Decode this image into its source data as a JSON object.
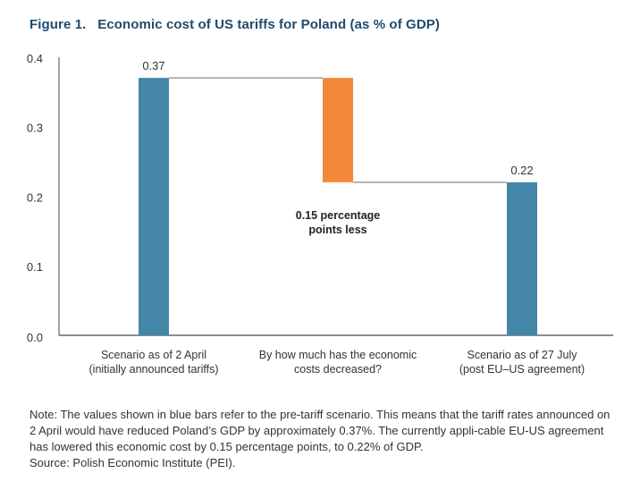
{
  "figure": {
    "title": "Figure 1.   Economic cost of US tariffs for Poland (as % of GDP)"
  },
  "chart_data": {
    "type": "bar",
    "subtype": "waterfall",
    "title": "Economic cost of US tariffs for Poland (as % of GDP)",
    "xlabel": "",
    "ylabel": "",
    "ylim": [
      0,
      0.4
    ],
    "yticks": [
      "0.0",
      "0.1",
      "0.2",
      "0.3",
      "0.4"
    ],
    "grid": false,
    "categories": [
      [
        "Scenario as of 2 April",
        "(initially announced tariffs)"
      ],
      [
        "By how much has the economic",
        "costs decreased?"
      ],
      [
        "Scenario as of 27 July",
        "(post EU–US agreement)"
      ]
    ],
    "bars": [
      {
        "label": "Scenario as of 2 April",
        "base": 0,
        "value": 0.37,
        "color": "#4486a8",
        "data_label": "0.37"
      },
      {
        "label": "By how much has the economic costs decreased?",
        "base": 0.22,
        "value": 0.37,
        "color": "#f5873a",
        "data_label": ""
      },
      {
        "label": "Scenario as of 27 July",
        "base": 0,
        "value": 0.22,
        "color": "#4486a8",
        "data_label": "0.22"
      }
    ],
    "connectors": [
      {
        "from": 0,
        "to": 1,
        "level": 0.37
      },
      {
        "from": 1,
        "to": 2,
        "level": 0.22
      }
    ],
    "annotation": [
      "0.15 percentage",
      "points less"
    ],
    "difference": 0.15
  },
  "notes": {
    "note": "Note: The values shown in blue bars refer to the pre-tariff scenario. This means that the tariff rates announced on 2 April would have reduced Poland’s GDP by approximately 0.37%. The currently appli-cable EU-US agreement has lowered this economic cost by 0.15 percentage points, to 0.22% of GDP.",
    "source": "Source: Polish Economic Institute (PEI)."
  },
  "colors": {
    "title": "#1f4a6e",
    "blue_bar": "#4486a8",
    "orange_bar": "#f5873a",
    "axis": "#666666",
    "connector": "#888888"
  }
}
